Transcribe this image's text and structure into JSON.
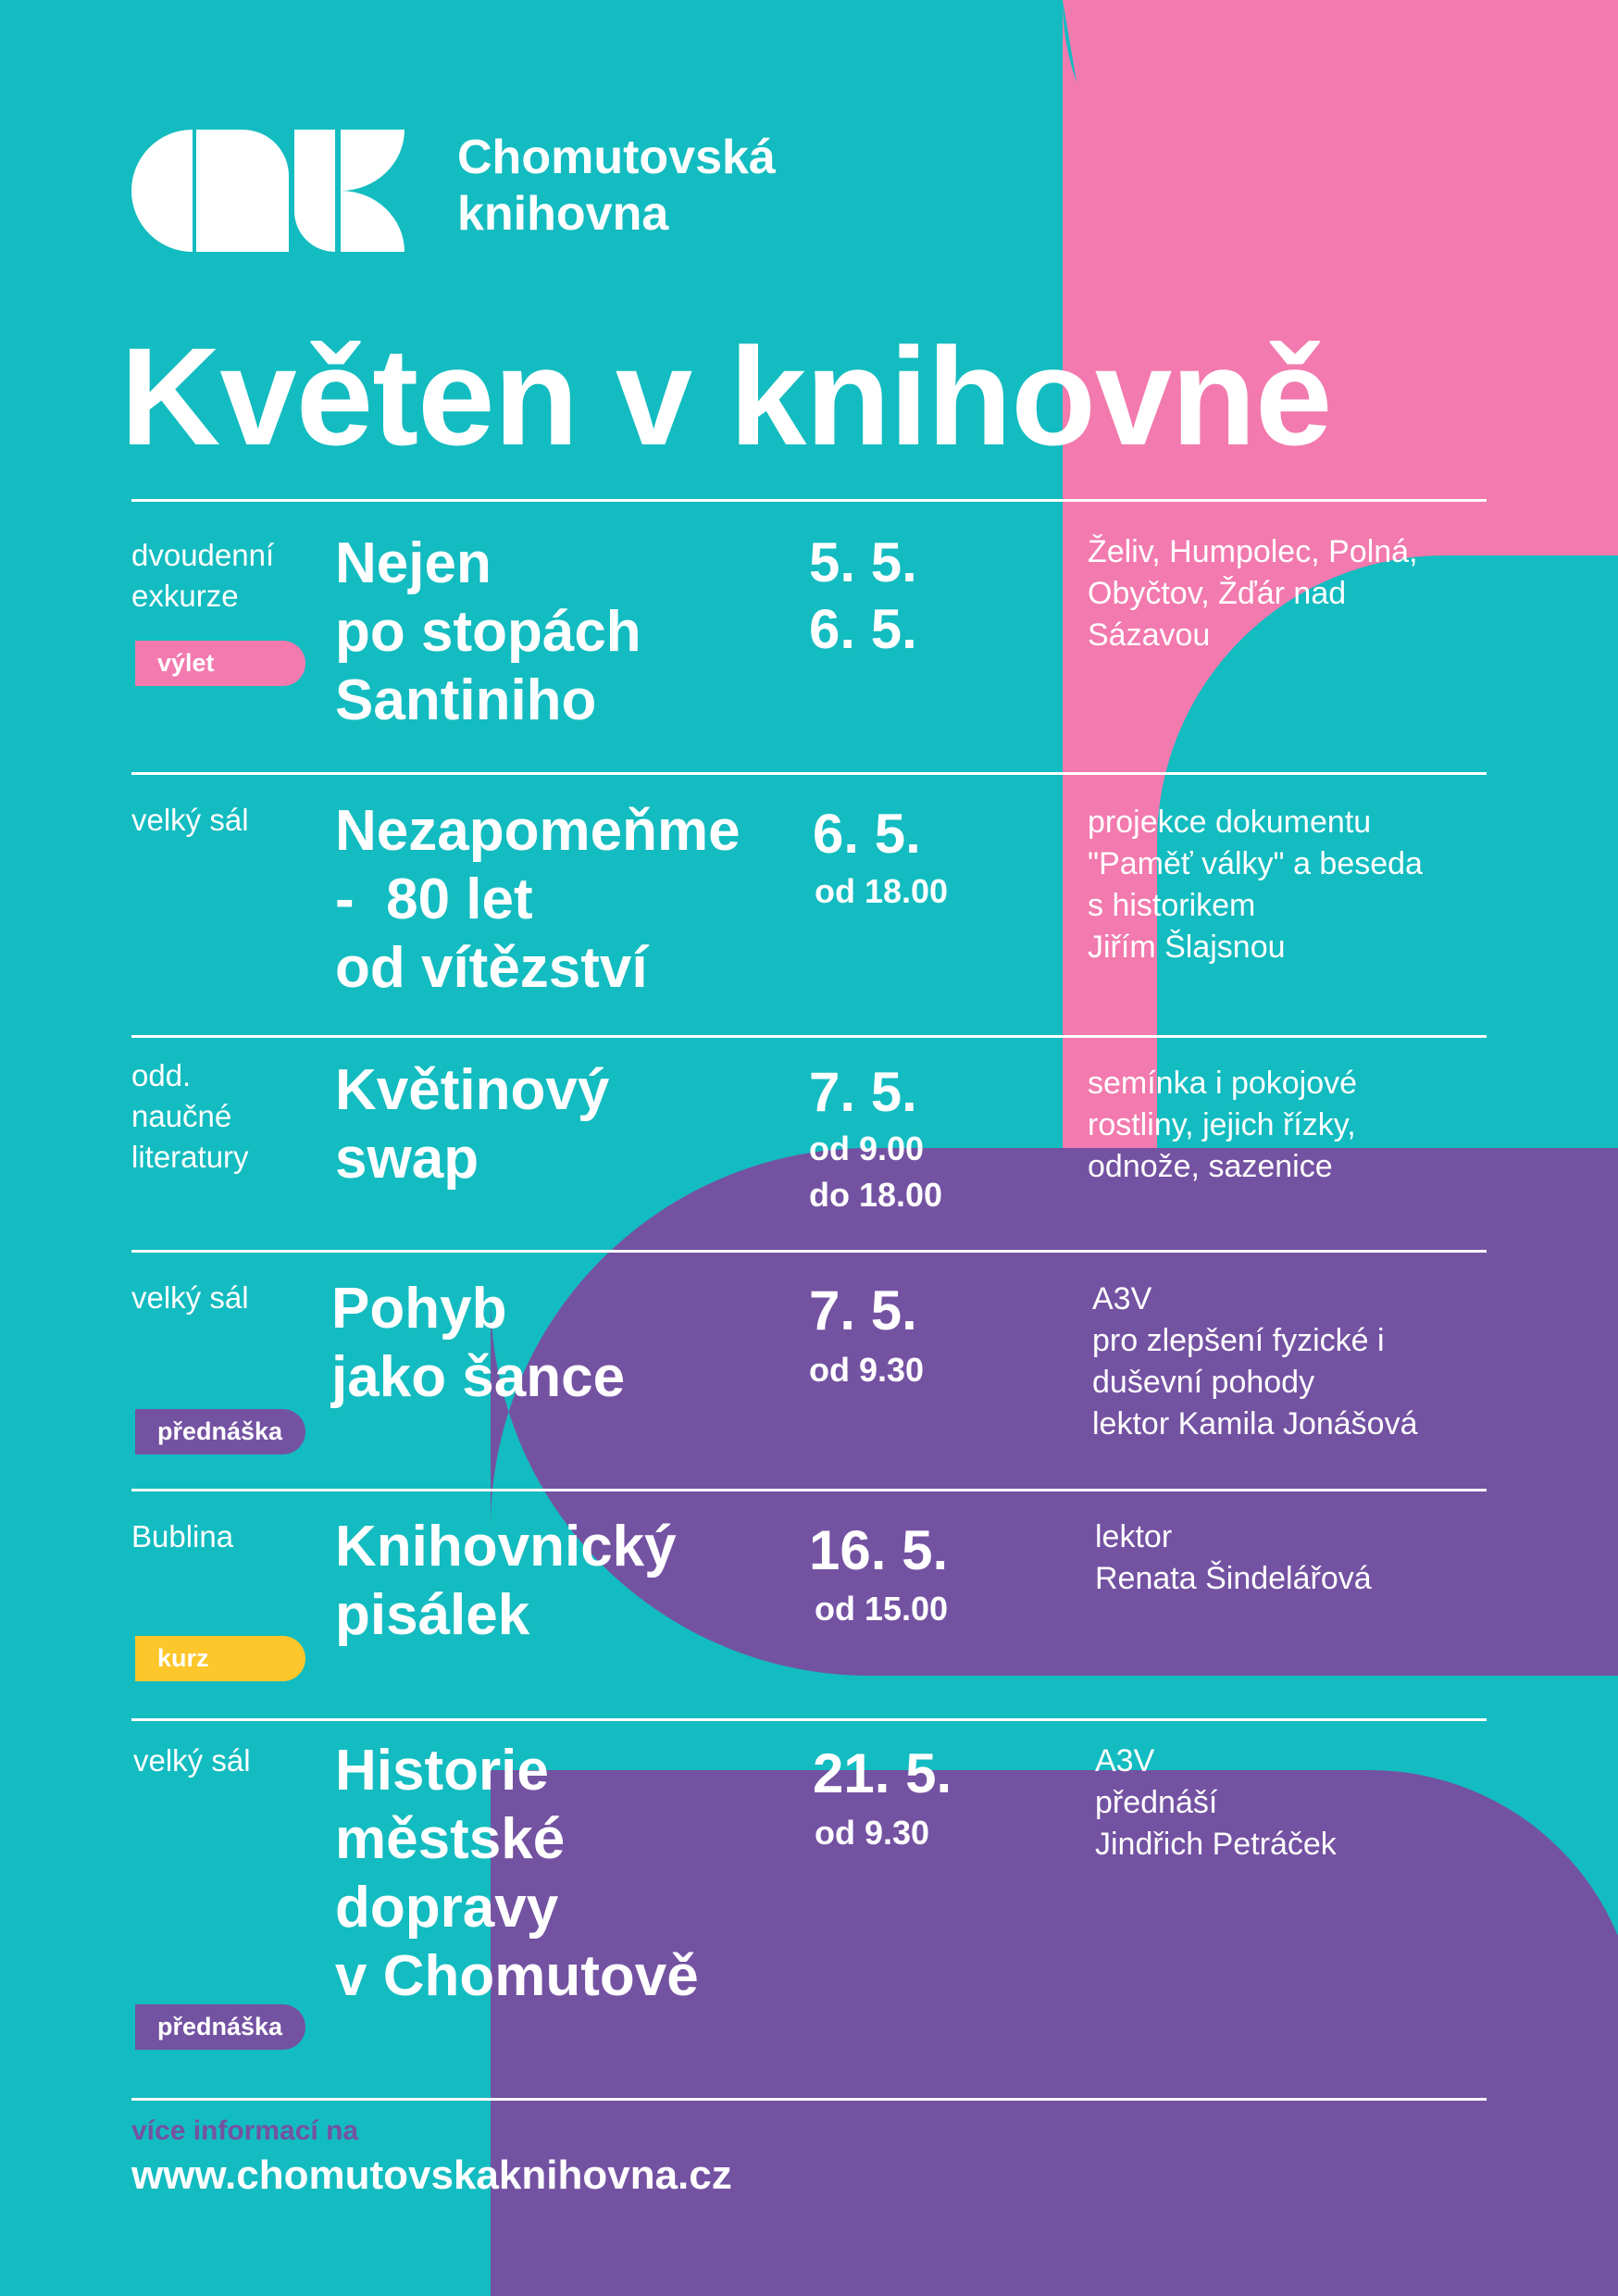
{
  "colors": {
    "teal": "#13bcc0",
    "pink": "#f27aae",
    "purple": "#7452a2",
    "yellow": "#fdc62a",
    "white": "#ffffff"
  },
  "header": {
    "logo_icon": "ck-logo-icon",
    "brand_line1": "Chomutovská",
    "brand_line2": "knihovna",
    "title": "Květen v knihovně"
  },
  "events": [
    {
      "location": [
        "dvoudenní",
        "exkurze"
      ],
      "tag": {
        "label": "výlet",
        "color": "#f27aae"
      },
      "name": [
        "Nejen",
        "po stopách",
        "Santiniho"
      ],
      "dates": [
        "5. 5.",
        "6. 5."
      ],
      "times": [],
      "description": [
        "Želiv, Humpolec, Polná,",
        "Obyčtov, Žďár nad",
        "Sázavou"
      ]
    },
    {
      "location": [
        "velký sál"
      ],
      "tag": null,
      "name": [
        "Nezapomeňme",
        "-  80 let",
        "od vítězství"
      ],
      "dates": [
        "6. 5."
      ],
      "times": [
        "od 18.00"
      ],
      "description": [
        "projekce dokumentu",
        "\"Paměť války\" a beseda",
        "s historikem",
        "Jiřím Šlajsnou"
      ]
    },
    {
      "location": [
        "odd.",
        "naučné",
        "literatury"
      ],
      "tag": null,
      "name": [
        "Květinový",
        "swap"
      ],
      "dates": [
        "7. 5."
      ],
      "times": [
        "od 9.00",
        "do 18.00"
      ],
      "description": [
        "semínka i pokojové",
        "rostliny, jejich řízky,",
        "odnože, sazenice"
      ]
    },
    {
      "location": [
        "velký sál"
      ],
      "tag": {
        "label": "přednáška",
        "color": "#7452a2"
      },
      "name": [
        "Pohyb",
        "jako šance"
      ],
      "dates": [
        "7. 5."
      ],
      "times": [
        "od 9.30"
      ],
      "description": [
        "A3V",
        "pro zlepšení fyzické i",
        "duševní pohody",
        "lektor Kamila Jonášová"
      ]
    },
    {
      "location": [
        "Bublina"
      ],
      "tag": {
        "label": "kurz",
        "color": "#fdc62a"
      },
      "name": [
        "Knihovnický",
        "pisálek"
      ],
      "dates": [
        "16. 5."
      ],
      "times": [
        "od 15.00"
      ],
      "description": [
        "lektor",
        "Renata Šindelářová"
      ]
    },
    {
      "location": [
        "velký sál"
      ],
      "tag": {
        "label": "přednáška",
        "color": "#7452a2"
      },
      "name": [
        "Historie",
        "městské",
        "dopravy",
        "v Chomutově"
      ],
      "dates": [
        "21. 5."
      ],
      "times": [
        "od 9.30"
      ],
      "description": [
        "A3V",
        "přednáší",
        "Jindřich Petráček"
      ]
    }
  ],
  "footer": {
    "label": "více informací na",
    "url": "www.chomutovskaknihovna.cz"
  }
}
